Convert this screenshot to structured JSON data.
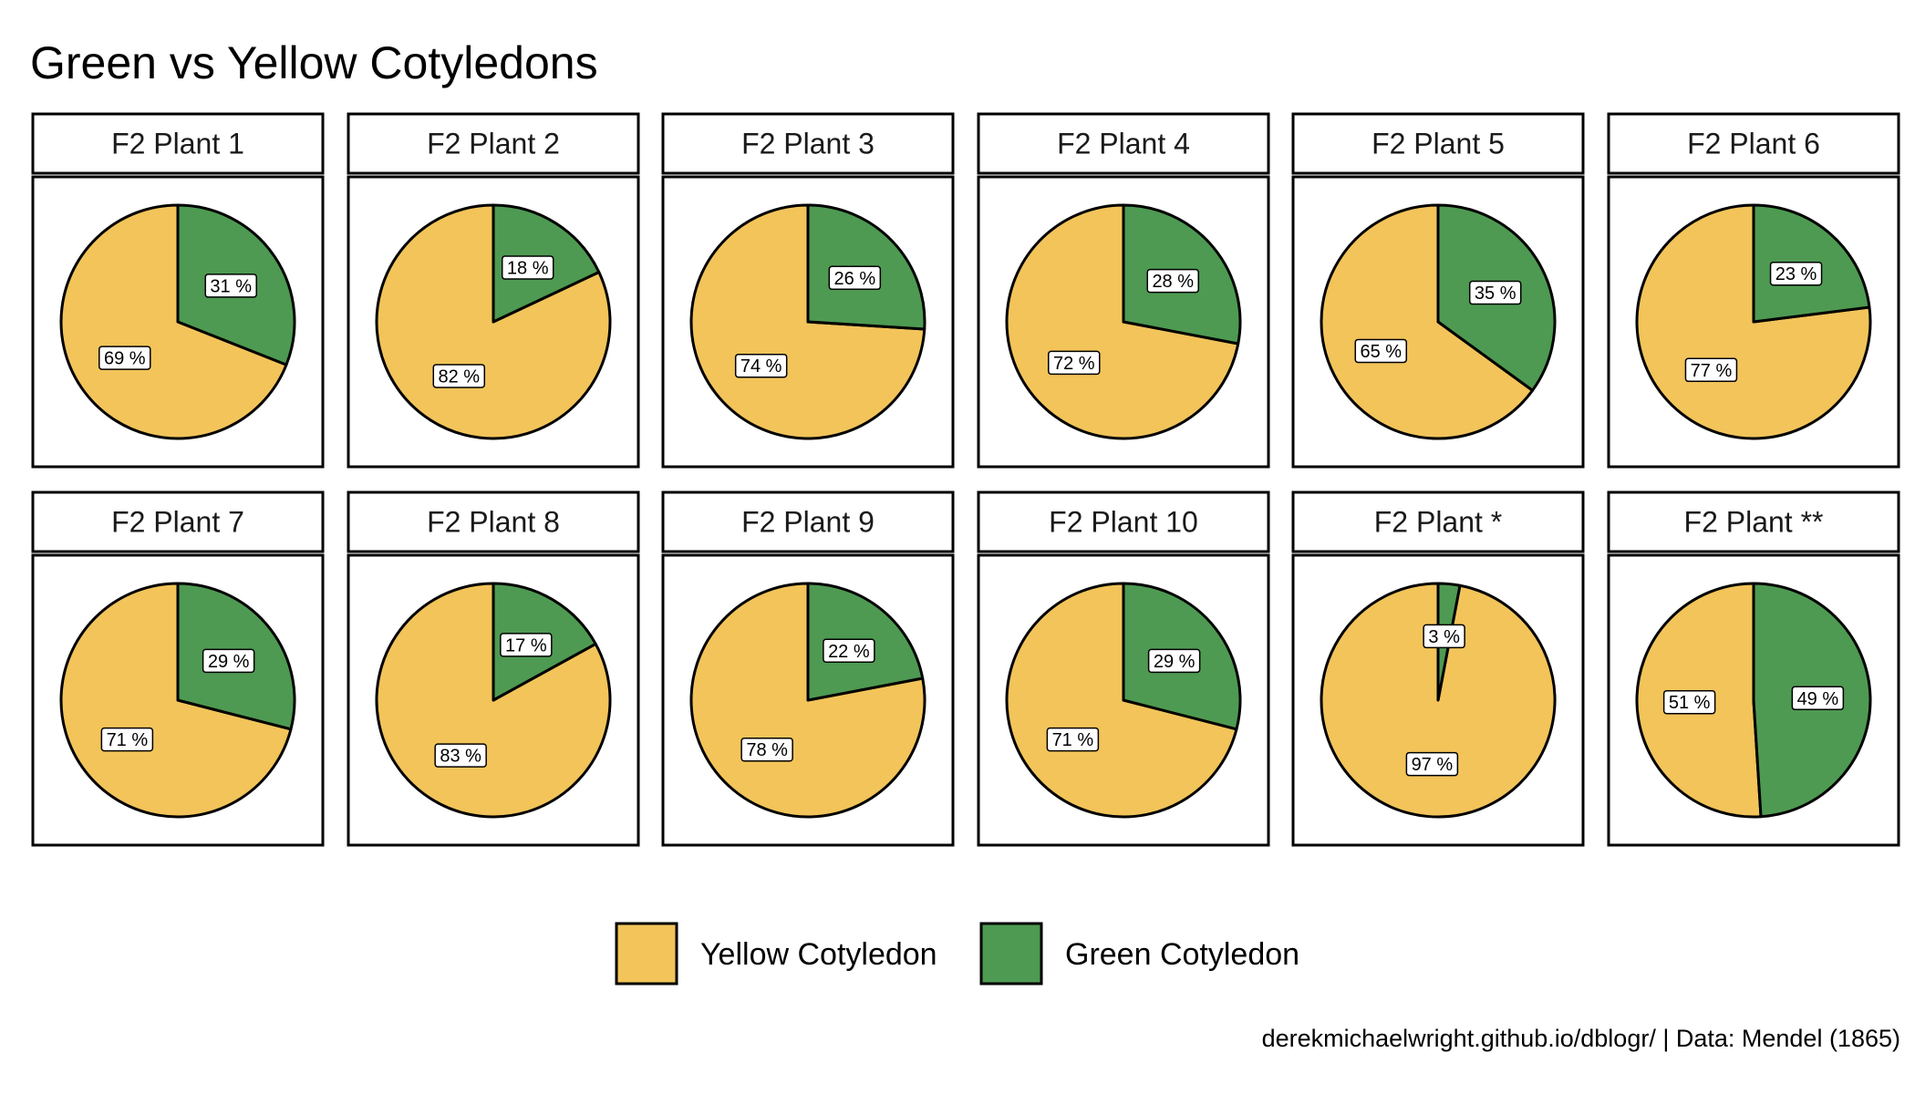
{
  "chart_data": {
    "type": "pie",
    "title": "Green vs Yellow Cotyledons",
    "caption": "derekmichaelwright.github.io/dblogr/ | Data: Mendel (1865)",
    "legend": {
      "position": "bottom",
      "entries": [
        "Yellow Cotyledon",
        "Green Cotyledon"
      ]
    },
    "colors": {
      "Yellow Cotyledon": "#F2C45A",
      "Green Cotyledon": "#4E9A52"
    },
    "panels": [
      {
        "name": "F2 Plant 1",
        "slices": [
          {
            "label": "Yellow Cotyledon",
            "value": 69,
            "text": "69 %"
          },
          {
            "label": "Green Cotyledon",
            "value": 31,
            "text": "31 %"
          }
        ]
      },
      {
        "name": "F2 Plant 2",
        "slices": [
          {
            "label": "Yellow Cotyledon",
            "value": 82,
            "text": "82 %"
          },
          {
            "label": "Green Cotyledon",
            "value": 18,
            "text": "18 %"
          }
        ]
      },
      {
        "name": "F2 Plant 3",
        "slices": [
          {
            "label": "Yellow Cotyledon",
            "value": 74,
            "text": "74 %"
          },
          {
            "label": "Green Cotyledon",
            "value": 26,
            "text": "26 %"
          }
        ]
      },
      {
        "name": "F2 Plant 4",
        "slices": [
          {
            "label": "Yellow Cotyledon",
            "value": 72,
            "text": "72 %"
          },
          {
            "label": "Green Cotyledon",
            "value": 28,
            "text": "28 %"
          }
        ]
      },
      {
        "name": "F2 Plant 5",
        "slices": [
          {
            "label": "Yellow Cotyledon",
            "value": 65,
            "text": "65 %"
          },
          {
            "label": "Green Cotyledon",
            "value": 35,
            "text": "35 %"
          }
        ]
      },
      {
        "name": "F2 Plant 6",
        "slices": [
          {
            "label": "Yellow Cotyledon",
            "value": 77,
            "text": "77 %"
          },
          {
            "label": "Green Cotyledon",
            "value": 23,
            "text": "23 %"
          }
        ]
      },
      {
        "name": "F2 Plant 7",
        "slices": [
          {
            "label": "Yellow Cotyledon",
            "value": 71,
            "text": "71 %"
          },
          {
            "label": "Green Cotyledon",
            "value": 29,
            "text": "29 %"
          }
        ]
      },
      {
        "name": "F2 Plant 8",
        "slices": [
          {
            "label": "Yellow Cotyledon",
            "value": 83,
            "text": "83 %"
          },
          {
            "label": "Green Cotyledon",
            "value": 17,
            "text": "17 %"
          }
        ]
      },
      {
        "name": "F2 Plant 9",
        "slices": [
          {
            "label": "Yellow Cotyledon",
            "value": 78,
            "text": "78 %"
          },
          {
            "label": "Green Cotyledon",
            "value": 22,
            "text": "22 %"
          }
        ]
      },
      {
        "name": "F2 Plant 10",
        "slices": [
          {
            "label": "Yellow Cotyledon",
            "value": 71,
            "text": "71 %"
          },
          {
            "label": "Green Cotyledon",
            "value": 29,
            "text": "29 %"
          }
        ]
      },
      {
        "name": "F2 Plant *",
        "slices": [
          {
            "label": "Yellow Cotyledon",
            "value": 97,
            "text": "97 %"
          },
          {
            "label": "Green Cotyledon",
            "value": 3,
            "text": "3 %"
          }
        ]
      },
      {
        "name": "F2 Plant **",
        "slices": [
          {
            "label": "Yellow Cotyledon",
            "value": 51,
            "text": "51 %"
          },
          {
            "label": "Green Cotyledon",
            "value": 49,
            "text": "49 %"
          }
        ]
      }
    ]
  }
}
